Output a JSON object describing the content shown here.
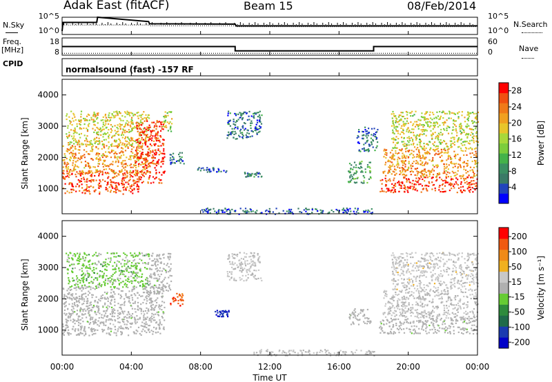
{
  "header": {
    "title": "Adak East (fitACF)",
    "beam": "Beam 15",
    "date": "08/Feb/2014"
  },
  "left_labels": {
    "nsky": "N.Sky",
    "freq": "Freq.",
    "freq_unit": "[MHz]",
    "cpid": "CPID"
  },
  "right_labels": {
    "nsearch": "N.Search",
    "nave": "Nave"
  },
  "cpid_text": "normalsound (fast) -157 RF",
  "colors": {
    "power_scale": [
      "#0000ff",
      "#2244bb",
      "#3a7a66",
      "#3b8f62",
      "#44b24a",
      "#7ccd3c",
      "#a8d83a",
      "#e8c52a",
      "#f0a020",
      "#f07a18",
      "#f05010",
      "#ff0000"
    ],
    "velocity_scale": [
      "#0000c8",
      "#1a3ab0",
      "#1f6a4a",
      "#2e8b3c",
      "#66cc33",
      "#b0b0b0",
      "#c8c8c8",
      "#f0b020",
      "#f08a18",
      "#f05a10",
      "#ff0000"
    ]
  },
  "chart_data": [
    {
      "type": "line",
      "name": "noise",
      "ylabels_left": [
        "10^5",
        "10^0"
      ],
      "ylabels_right": [
        "10^5",
        "10^0"
      ],
      "x_hours": [
        0,
        0.05,
        2,
        2.05,
        5,
        5.05,
        10,
        10.05,
        24
      ],
      "series": [
        {
          "name": "N.Sky",
          "values": [
            0.2,
            0.7,
            0.7,
            1.0,
            0.75,
            0.62,
            0.6,
            0.5,
            0.5
          ]
        },
        {
          "name": "N.Search",
          "values": [
            0.5,
            0.55,
            0.55,
            0.55,
            0.55,
            0.5,
            0.5,
            0.45,
            0.45
          ]
        }
      ]
    },
    {
      "type": "line",
      "name": "frequency",
      "ylabels_left": [
        "18",
        "8"
      ],
      "ylabels_right": [
        "60",
        "0"
      ],
      "x_hours": [
        0,
        10,
        10,
        18,
        18,
        24
      ],
      "series": [
        {
          "name": "Freq.",
          "values": [
            13,
            13,
            10.5,
            10.5,
            13,
            13
          ]
        },
        {
          "name": "Nave",
          "values": [
            8,
            8,
            8,
            8,
            8,
            8
          ]
        }
      ]
    },
    {
      "type": "heatmap",
      "name": "power",
      "ylabel": "Slant Range [km]",
      "yticks": [
        "1000",
        "2000",
        "3000",
        "4000"
      ],
      "ylim": [
        200,
        4500
      ],
      "xlim": [
        0,
        24
      ],
      "colorbar": {
        "label": "Power [dB]",
        "ticks": [
          "4",
          "8",
          "12",
          "16",
          "20",
          "24",
          "28"
        ],
        "range": [
          0,
          30
        ]
      },
      "regions": [
        {
          "t0": 0,
          "t1": 4.4,
          "r0": 850,
          "r1": 1600,
          "value": 26
        },
        {
          "t0": 0,
          "t1": 5.2,
          "r0": 1500,
          "r1": 2400,
          "value": 22
        },
        {
          "t0": 0.2,
          "t1": 5.0,
          "r0": 2400,
          "r1": 3500,
          "value": 18
        },
        {
          "t0": 4.2,
          "t1": 5.9,
          "r0": 1200,
          "r1": 3200,
          "value": 27
        },
        {
          "t0": 5.8,
          "t1": 6.3,
          "r0": 2800,
          "r1": 3500,
          "value": 16
        },
        {
          "t0": 6.2,
          "t1": 7.0,
          "r0": 1800,
          "r1": 2200,
          "value": 6
        },
        {
          "t0": 7.8,
          "t1": 9.5,
          "r0": 1550,
          "r1": 1700,
          "value": 6
        },
        {
          "t0": 9.5,
          "t1": 11.5,
          "r0": 2600,
          "r1": 3500,
          "value": 6
        },
        {
          "t0": 10.5,
          "t1": 11.5,
          "r0": 1400,
          "r1": 1550,
          "value": 6
        },
        {
          "t0": 8,
          "t1": 18,
          "r0": 200,
          "r1": 400,
          "value": 5
        },
        {
          "t0": 16.5,
          "t1": 17.8,
          "r0": 1200,
          "r1": 1900,
          "value": 10
        },
        {
          "t0": 17,
          "t1": 18.2,
          "r0": 2200,
          "r1": 3000,
          "value": 6
        },
        {
          "t0": 18.3,
          "t1": 24,
          "r0": 900,
          "r1": 1400,
          "value": 27
        },
        {
          "t0": 18.5,
          "t1": 24,
          "r0": 1400,
          "r1": 2300,
          "value": 22
        },
        {
          "t0": 19,
          "t1": 24,
          "r0": 2300,
          "r1": 3500,
          "value": 17
        }
      ]
    },
    {
      "type": "heatmap",
      "name": "velocity",
      "ylabel": "Slant Range [km]",
      "yticks": [
        "1000",
        "2000",
        "3000",
        "4000"
      ],
      "ylim": [
        200,
        4500
      ],
      "xlim": [
        0,
        24
      ],
      "xticks": [
        "00:00",
        "04:00",
        "08:00",
        "12:00",
        "16:00",
        "20:00",
        "00:00"
      ],
      "xlabel": "Time UT",
      "colorbar": {
        "label": "Velocity [m s⁻¹]",
        "ticks": [
          "200",
          "100",
          "50",
          "15",
          "-15",
          "-50",
          "-100",
          "-200"
        ],
        "range": [
          -250,
          250
        ]
      },
      "regions": [
        {
          "t0": 0,
          "t1": 5.9,
          "r0": 850,
          "r1": 2400,
          "value": 0
        },
        {
          "t0": 0.2,
          "t1": 5.0,
          "r0": 2400,
          "r1": 3500,
          "value": -40
        },
        {
          "t0": 5.0,
          "t1": 6.3,
          "r0": 2200,
          "r1": 3500,
          "value": 0
        },
        {
          "t0": 6.2,
          "t1": 7.0,
          "r0": 1800,
          "r1": 2200,
          "value": 180
        },
        {
          "t0": 8.8,
          "t1": 9.6,
          "r0": 1450,
          "r1": 1650,
          "value": -200
        },
        {
          "t0": 9.5,
          "t1": 11.5,
          "r0": 2600,
          "r1": 3500,
          "value": 30
        },
        {
          "t0": 11,
          "t1": 18,
          "r0": 200,
          "r1": 400,
          "value": 30
        },
        {
          "t0": 16.5,
          "t1": 17.8,
          "r0": 1200,
          "r1": 1700,
          "value": 0
        },
        {
          "t0": 18.3,
          "t1": 24,
          "r0": 900,
          "r1": 1400,
          "value": 0
        },
        {
          "t0": 18.5,
          "t1": 24,
          "r0": 1400,
          "r1": 2300,
          "value": 25
        },
        {
          "t0": 19,
          "t1": 24,
          "r0": 2300,
          "r1": 3500,
          "value": 40
        }
      ]
    }
  ]
}
